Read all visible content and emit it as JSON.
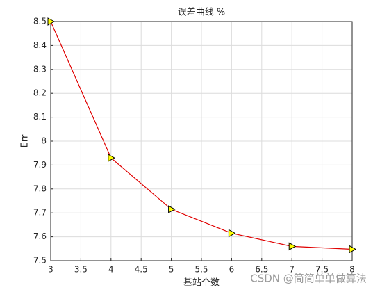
{
  "chart_data": {
    "type": "line",
    "title": "误差曲线 %",
    "x_label": "基站个数",
    "y_label": "Err",
    "annotation": "CSDN @简简单单做算法",
    "x": [
      3,
      4,
      5,
      6,
      7,
      8
    ],
    "series": [
      {
        "color": "#e00000",
        "marker_color": "#ffff00",
        "values": [
          8.5,
          7.93,
          7.715,
          7.615,
          7.56,
          7.548
        ]
      }
    ],
    "xlim": [
      3,
      8
    ],
    "xticks": [
      3,
      3.5,
      4,
      4.5,
      5,
      5.5,
      6,
      6.5,
      7,
      7.5,
      8
    ],
    "ylim": [
      7.5,
      8.5
    ],
    "yticks": [
      7.5,
      7.6,
      7.7,
      7.8,
      7.9,
      8,
      8.1,
      8.2,
      8.3,
      8.4,
      8.5
    ],
    "grid": true
  }
}
